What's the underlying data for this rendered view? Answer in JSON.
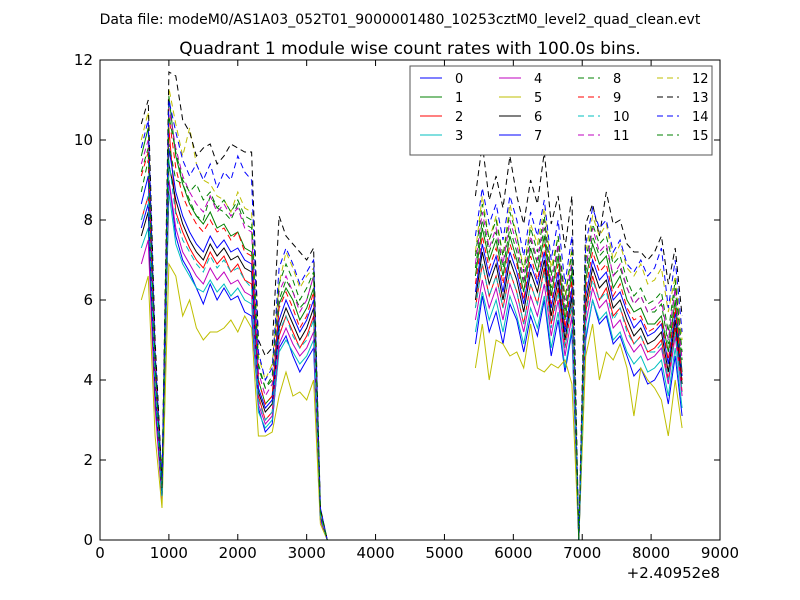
{
  "figure": {
    "suptitle": "Data file: modeM0/AS1A03_052T01_9000001480_10253cztM0_level2_quad_clean.evt"
  },
  "chart_data": {
    "type": "line",
    "title": "Quadrant 1 module wise count rates with 100.0s bins.",
    "xlabel": "",
    "ylabel": "",
    "x_offset_label": "+2.40952e8",
    "xlim": [
      0,
      9000
    ],
    "ylim": [
      0,
      12
    ],
    "x_ticks": [
      0,
      1000,
      2000,
      3000,
      4000,
      5000,
      6000,
      7000,
      8000,
      9000
    ],
    "y_ticks": [
      0,
      2,
      4,
      6,
      8,
      10,
      12
    ],
    "grid": false,
    "legend_position": "top-right",
    "legend_columns": 4,
    "series_gaps_x": [
      [
        3400,
        5450
      ],
      [
        7150,
        7250
      ]
    ],
    "series": [
      {
        "name": "0",
        "color": "#0000ff",
        "dash": "solid",
        "values": [
          8.4,
          9.1,
          3.8,
          1.1,
          9.0,
          7.6,
          7.0,
          6.7,
          6.3,
          5.9,
          6.4,
          6.0,
          6.3,
          6.0,
          6.1,
          5.7,
          5.6,
          3.3,
          2.7,
          2.9,
          4.8,
          5.1,
          4.6,
          4.2,
          4.5,
          4.8,
          0.5,
          0.0,
          4.9,
          6.1,
          5.2,
          5.7,
          4.9,
          5.9,
          5.5,
          4.7,
          5.6,
          5.1,
          6.0,
          4.6,
          5.5,
          4.2,
          5.2,
          0.0,
          5.0,
          6.0,
          5.4,
          5.6,
          4.9,
          5.1,
          4.6,
          4.1,
          4.3,
          3.9,
          4.0,
          4.3,
          3.4,
          4.6,
          3.1
        ]
      },
      {
        "name": "1",
        "color": "#008000",
        "dash": "solid",
        "values": [
          9.6,
          10.3,
          4.6,
          1.4,
          11.1,
          9.6,
          8.9,
          8.4,
          8.1,
          7.9,
          8.2,
          7.8,
          7.9,
          7.6,
          7.7,
          7.3,
          7.2,
          4.0,
          3.4,
          3.6,
          5.9,
          6.3,
          6.0,
          5.5,
          5.8,
          6.3,
          0.7,
          0.0,
          6.6,
          7.8,
          7.0,
          7.5,
          6.6,
          7.6,
          7.0,
          6.2,
          7.3,
          6.7,
          7.6,
          6.1,
          7.1,
          5.5,
          6.7,
          0.0,
          6.5,
          7.4,
          6.9,
          7.1,
          6.3,
          6.6,
          6.0,
          5.7,
          5.8,
          5.4,
          5.4,
          5.6,
          4.7,
          6.0,
          4.2
        ]
      },
      {
        "name": "2",
        "color": "#ff0000",
        "dash": "solid",
        "values": [
          8.0,
          8.6,
          3.9,
          1.2,
          10.3,
          8.2,
          7.7,
          7.3,
          7.0,
          6.8,
          7.2,
          6.9,
          7.1,
          6.7,
          6.9,
          6.5,
          6.4,
          3.6,
          3.0,
          3.2,
          5.1,
          5.6,
          5.2,
          4.8,
          5.1,
          5.6,
          0.6,
          0.0,
          5.8,
          6.9,
          6.1,
          6.6,
          5.8,
          6.7,
          6.2,
          5.4,
          6.4,
          5.9,
          6.8,
          5.4,
          6.3,
          4.8,
          5.9,
          0.0,
          5.7,
          6.6,
          6.0,
          6.3,
          5.6,
          5.8,
          5.3,
          4.9,
          5.1,
          4.7,
          4.8,
          5.0,
          4.0,
          5.3,
          3.7
        ]
      },
      {
        "name": "3",
        "color": "#00bfbf",
        "dash": "solid",
        "values": [
          7.3,
          7.8,
          3.5,
          1.0,
          8.7,
          7.4,
          6.9,
          6.6,
          6.3,
          6.2,
          6.5,
          6.2,
          6.4,
          6.1,
          6.3,
          6.0,
          5.9,
          3.2,
          2.8,
          3.0,
          4.7,
          5.0,
          4.7,
          4.4,
          4.6,
          5.0,
          0.5,
          0.0,
          5.2,
          6.2,
          5.5,
          6.0,
          5.2,
          6.1,
          5.6,
          4.9,
          5.8,
          5.3,
          6.1,
          4.8,
          5.7,
          4.3,
          5.3,
          0.0,
          5.1,
          6.0,
          5.5,
          5.7,
          5.0,
          5.2,
          4.7,
          4.4,
          4.6,
          4.2,
          4.3,
          4.5,
          3.6,
          4.8,
          3.3
        ]
      },
      {
        "name": "4",
        "color": "#bf00bf",
        "dash": "solid",
        "values": [
          6.9,
          7.5,
          3.3,
          1.0,
          9.0,
          7.8,
          7.2,
          6.9,
          6.6,
          6.4,
          6.8,
          6.5,
          6.7,
          6.4,
          6.5,
          6.2,
          6.1,
          3.4,
          2.9,
          3.1,
          4.9,
          5.3,
          4.9,
          4.6,
          4.8,
          5.2,
          0.5,
          0.0,
          5.5,
          6.5,
          5.8,
          6.3,
          5.5,
          6.4,
          5.9,
          5.2,
          6.1,
          5.6,
          6.4,
          5.1,
          6.0,
          4.6,
          5.6,
          0.0,
          5.4,
          6.3,
          5.8,
          6.0,
          5.3,
          5.5,
          5.0,
          4.7,
          4.9,
          4.5,
          4.6,
          4.8,
          3.9,
          5.1,
          3.6
        ]
      },
      {
        "name": "5",
        "color": "#bfbf00",
        "dash": "solid",
        "values": [
          6.0,
          6.6,
          2.6,
          0.8,
          6.9,
          6.6,
          5.6,
          6.0,
          5.3,
          5.0,
          5.2,
          5.2,
          5.3,
          5.5,
          5.2,
          5.6,
          5.3,
          2.6,
          2.6,
          2.7,
          3.6,
          4.2,
          3.6,
          3.7,
          3.5,
          4.0,
          0.4,
          0.0,
          4.3,
          5.4,
          4.0,
          5.0,
          4.9,
          4.6,
          4.7,
          4.3,
          5.4,
          4.3,
          4.2,
          4.4,
          4.3,
          4.5,
          3.9,
          0.0,
          4.6,
          5.4,
          4.0,
          4.7,
          4.5,
          4.9,
          4.3,
          3.1,
          4.3,
          4.0,
          3.8,
          3.5,
          2.6,
          4.0,
          2.8
        ]
      },
      {
        "name": "6",
        "color": "#000000",
        "dash": "solid",
        "values": [
          7.6,
          8.2,
          3.7,
          1.1,
          9.4,
          8.5,
          7.9,
          7.5,
          7.2,
          7.0,
          7.4,
          7.1,
          7.3,
          7.0,
          7.1,
          6.8,
          6.7,
          3.7,
          3.2,
          3.4,
          5.3,
          5.8,
          5.4,
          5.0,
          5.3,
          5.8,
          0.6,
          0.0,
          6.0,
          7.2,
          6.4,
          6.9,
          6.0,
          7.0,
          6.5,
          5.7,
          6.7,
          6.2,
          7.0,
          5.6,
          6.5,
          5.0,
          6.1,
          0.0,
          5.9,
          6.8,
          6.3,
          6.5,
          5.8,
          6.0,
          5.5,
          5.1,
          5.3,
          4.9,
          5.0,
          5.2,
          4.2,
          5.5,
          3.9
        ]
      },
      {
        "name": "7",
        "color": "#0000ff",
        "dash": "solid",
        "values": [
          7.8,
          8.4,
          3.8,
          1.1,
          9.8,
          8.7,
          8.1,
          7.7,
          7.4,
          7.2,
          7.6,
          7.3,
          7.5,
          7.2,
          7.3,
          7.0,
          6.9,
          3.8,
          3.3,
          3.5,
          5.5,
          6.0,
          5.6,
          5.2,
          5.5,
          6.0,
          0.6,
          0.0,
          6.2,
          7.4,
          6.6,
          7.1,
          6.2,
          7.2,
          6.7,
          5.9,
          6.9,
          6.4,
          7.2,
          5.8,
          6.7,
          5.2,
          6.3,
          0.0,
          6.1,
          7.0,
          6.5,
          6.7,
          6.0,
          6.2,
          5.7,
          5.3,
          5.5,
          5.1,
          5.2,
          5.4,
          4.4,
          5.7,
          4.1
        ]
      },
      {
        "name": "8",
        "color": "#008000",
        "dash": "dashed",
        "values": [
          8.7,
          9.5,
          4.2,
          1.2,
          9.9,
          9.0,
          8.9,
          8.5,
          8.1,
          8.0,
          8.6,
          8.3,
          8.2,
          8.0,
          8.4,
          7.9,
          7.8,
          4.3,
          3.8,
          4.0,
          6.0,
          6.5,
          6.2,
          5.8,
          6.0,
          6.6,
          0.7,
          0.0,
          6.8,
          8.0,
          7.2,
          7.7,
          6.8,
          7.8,
          7.2,
          6.4,
          7.5,
          6.9,
          7.8,
          6.3,
          7.3,
          5.7,
          6.9,
          0.0,
          6.7,
          7.6,
          7.1,
          7.3,
          6.6,
          6.8,
          6.3,
          5.9,
          6.1,
          5.7,
          5.7,
          5.9,
          4.9,
          6.3,
          4.5
        ]
      },
      {
        "name": "9",
        "color": "#ff0000",
        "dash": "dashed",
        "values": [
          9.1,
          9.7,
          4.3,
          1.3,
          10.6,
          9.3,
          8.6,
          8.2,
          7.9,
          7.7,
          8.0,
          7.7,
          7.8,
          7.5,
          7.7,
          7.2,
          7.1,
          4.0,
          3.4,
          3.6,
          5.8,
          6.2,
          5.8,
          5.3,
          5.6,
          6.2,
          0.7,
          0.0,
          6.4,
          7.6,
          6.8,
          7.3,
          6.4,
          7.4,
          6.9,
          6.0,
          7.1,
          6.5,
          7.4,
          5.9,
          6.9,
          5.3,
          6.5,
          0.0,
          6.3,
          7.2,
          6.7,
          6.9,
          6.1,
          6.4,
          5.8,
          5.5,
          5.6,
          5.2,
          5.3,
          5.5,
          4.5,
          5.8,
          4.0
        ]
      },
      {
        "name": "10",
        "color": "#00bfbf",
        "dash": "dashed",
        "values": [
          8.0,
          8.6,
          3.9,
          1.1,
          9.5,
          8.1,
          7.5,
          7.2,
          6.9,
          6.7,
          7.1,
          6.8,
          7.0,
          6.7,
          6.8,
          6.5,
          6.3,
          3.5,
          3.0,
          3.2,
          5.2,
          5.6,
          5.1,
          4.8,
          5.0,
          5.5,
          0.6,
          0.0,
          5.8,
          6.9,
          6.1,
          6.6,
          5.8,
          6.7,
          6.2,
          5.4,
          6.4,
          5.9,
          6.7,
          5.3,
          6.2,
          4.8,
          5.9,
          0.0,
          5.6,
          6.5,
          6.0,
          6.2,
          5.5,
          5.8,
          5.2,
          4.9,
          5.1,
          4.7,
          4.7,
          4.9,
          4.0,
          5.2,
          3.7
        ]
      },
      {
        "name": "11",
        "color": "#bf00bf",
        "dash": "dashed",
        "values": [
          9.4,
          10.0,
          4.5,
          1.3,
          10.8,
          9.8,
          9.1,
          8.7,
          8.4,
          8.2,
          8.6,
          8.2,
          8.4,
          8.1,
          8.3,
          7.8,
          7.7,
          4.2,
          3.6,
          3.9,
          6.2,
          6.6,
          6.2,
          5.7,
          6.0,
          6.6,
          0.7,
          0.0,
          6.9,
          8.2,
          7.3,
          7.8,
          6.9,
          8.0,
          7.4,
          6.5,
          7.6,
          7.0,
          8.0,
          6.4,
          7.4,
          5.8,
          7.0,
          0.0,
          6.8,
          7.8,
          7.2,
          7.4,
          6.6,
          6.9,
          6.3,
          5.9,
          6.1,
          5.7,
          5.8,
          6.0,
          5.0,
          6.3,
          4.5
        ]
      },
      {
        "name": "12",
        "color": "#bfbf00",
        "dash": "dashed",
        "values": [
          10.0,
          10.7,
          4.8,
          1.4,
          11.3,
          10.4,
          9.6,
          10.3,
          9.4,
          9.0,
          8.9,
          8.6,
          8.5,
          8.2,
          8.7,
          8.3,
          8.2,
          4.6,
          4.0,
          4.4,
          6.4,
          7.2,
          6.8,
          6.3,
          6.6,
          6.8,
          0.7,
          0.0,
          7.2,
          8.6,
          7.5,
          8.1,
          7.1,
          8.4,
          7.6,
          6.8,
          7.9,
          7.4,
          8.3,
          6.8,
          7.6,
          6.1,
          7.3,
          0.0,
          7.2,
          8.1,
          7.6,
          7.9,
          7.0,
          7.4,
          6.8,
          6.6,
          6.9,
          6.4,
          6.5,
          6.8,
          5.7,
          6.6,
          5.0
        ]
      },
      {
        "name": "13",
        "color": "#000000",
        "dash": "dashed",
        "values": [
          10.4,
          11.0,
          5.0,
          1.5,
          11.7,
          11.6,
          10.5,
          10.2,
          9.6,
          9.8,
          9.9,
          9.4,
          9.6,
          9.9,
          9.8,
          9.7,
          9.7,
          5.0,
          4.6,
          4.8,
          8.1,
          7.6,
          7.4,
          7.2,
          7.0,
          7.3,
          0.8,
          0.0,
          8.6,
          9.9,
          8.5,
          9.1,
          8.3,
          9.6,
          8.6,
          7.9,
          9.0,
          8.4,
          9.7,
          7.9,
          8.6,
          7.3,
          8.6,
          0.0,
          7.9,
          8.4,
          7.6,
          8.7,
          7.9,
          8.0,
          7.4,
          7.2,
          7.2,
          7.0,
          7.2,
          7.6,
          6.4,
          7.3,
          5.6
        ]
      },
      {
        "name": "14",
        "color": "#0000ff",
        "dash": "dashed",
        "values": [
          9.8,
          10.5,
          4.7,
          1.4,
          11.0,
          10.2,
          9.5,
          9.1,
          9.4,
          9.0,
          9.4,
          8.8,
          9.2,
          9.0,
          9.6,
          9.2,
          9.0,
          4.7,
          4.0,
          4.3,
          6.8,
          7.3,
          6.9,
          6.4,
          6.7,
          7.0,
          0.8,
          0.0,
          7.6,
          8.8,
          7.9,
          8.4,
          7.5,
          8.6,
          8.0,
          7.1,
          8.2,
          7.6,
          8.5,
          7.0,
          8.0,
          6.4,
          7.6,
          0.0,
          7.4,
          8.3,
          7.8,
          8.0,
          7.2,
          7.5,
          6.9,
          6.7,
          7.0,
          6.6,
          6.8,
          7.3,
          5.8,
          7.0,
          5.2
        ]
      },
      {
        "name": "15",
        "color": "#008000",
        "dash": "dashed",
        "values": [
          9.2,
          9.8,
          4.4,
          1.3,
          10.6,
          9.7,
          9.0,
          8.7,
          8.9,
          8.5,
          8.7,
          8.3,
          8.5,
          8.2,
          8.5,
          8.1,
          8.0,
          4.4,
          3.8,
          4.1,
          6.4,
          6.9,
          6.5,
          6.0,
          6.3,
          6.7,
          0.7,
          0.0,
          7.1,
          8.4,
          7.5,
          8.0,
          7.1,
          8.2,
          7.6,
          6.7,
          7.8,
          7.2,
          8.1,
          6.6,
          7.6,
          6.0,
          7.2,
          0.0,
          7.0,
          7.9,
          7.4,
          7.6,
          6.9,
          7.1,
          6.5,
          6.1,
          6.3,
          5.9,
          6.0,
          6.2,
          5.2,
          6.5,
          4.7
        ]
      }
    ]
  }
}
